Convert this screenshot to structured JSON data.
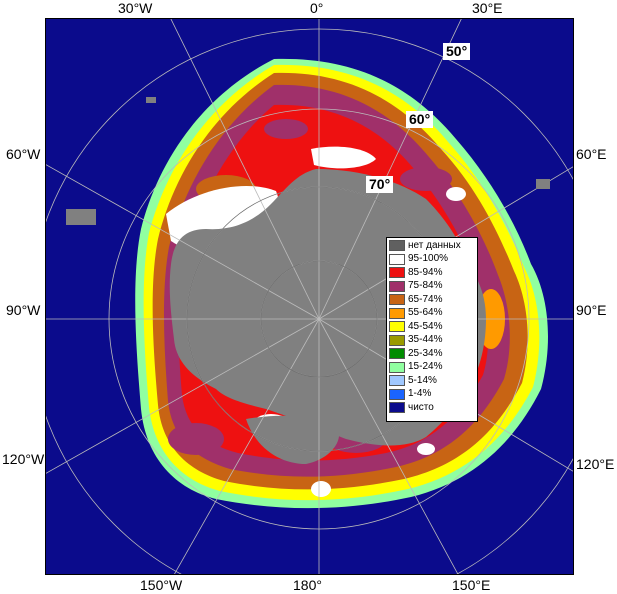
{
  "map": {
    "lon_labels": {
      "top_w30": "30°W",
      "top_0": "0°",
      "top_e30": "30°E",
      "left_w60": "60°W",
      "left_w90": "90°W",
      "left_w120": "120°W",
      "right_e60": "60°E",
      "right_e90": "90°E",
      "right_e120": "120°E",
      "bottom_w150": "150°W",
      "bottom_180": "180°",
      "bottom_e150": "150°E"
    },
    "lat_labels": {
      "lat50": "50°",
      "lat60": "60°",
      "lat70": "70°"
    },
    "colors": {
      "ocean": "#0b0b8c",
      "land": "#808080",
      "no_data": "#606060",
      "ice_95_100": "#ffffff",
      "ice_85_94": "#ee1111",
      "ice_75_84": "#a0306a",
      "ice_65_74": "#c86414",
      "ice_55_64": "#ff9a00",
      "ice_45_54": "#ffff00",
      "ice_35_44": "#9a9a00",
      "ice_25_34": "#008c00",
      "ice_15_24": "#90ffa0",
      "ice_5_14": "#a0c8ff",
      "ice_1_4": "#1a64ff",
      "clear": "#0b0b8c"
    }
  },
  "legend": {
    "items": [
      {
        "label": "нет данных",
        "color": "#606060"
      },
      {
        "label": "95-100%",
        "color": "#ffffff"
      },
      {
        "label": "85-94%",
        "color": "#ee1111"
      },
      {
        "label": "75-84%",
        "color": "#a0306a"
      },
      {
        "label": "65-74%",
        "color": "#c86414"
      },
      {
        "label": "55-64%",
        "color": "#ff9a00"
      },
      {
        "label": "45-54%",
        "color": "#ffff00"
      },
      {
        "label": "35-44%",
        "color": "#9a9a00"
      },
      {
        "label": "25-34%",
        "color": "#008c00"
      },
      {
        "label": "15-24%",
        "color": "#90ffa0"
      },
      {
        "label": "5-14%",
        "color": "#a0c8ff"
      },
      {
        "label": "1-4%",
        "color": "#1a64ff"
      },
      {
        "label": "чисто",
        "color": "#0b0b8c"
      }
    ]
  }
}
